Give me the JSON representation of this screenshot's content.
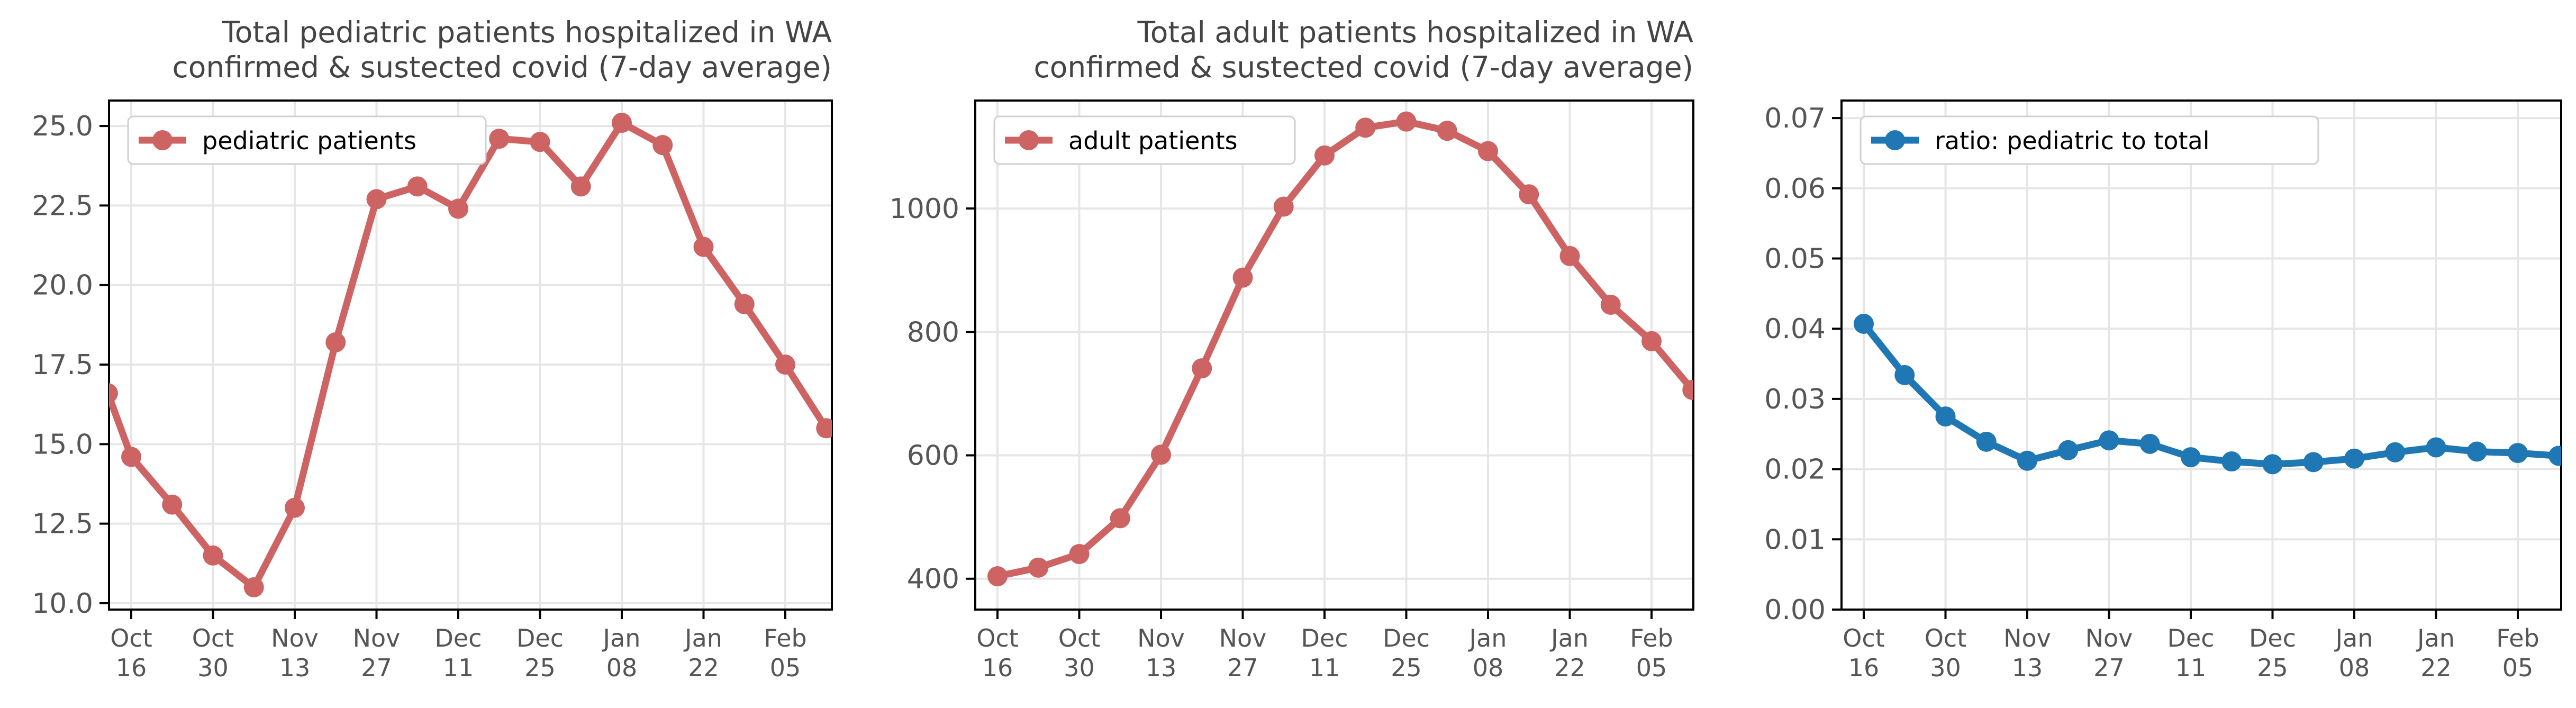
{
  "chart_data": [
    {
      "type": "line",
      "title": "Total pediatric patients hospitalized in WA\nconfirmed & sustected covid (7-day average)",
      "xlabel": "",
      "ylabel": "",
      "x_tick_labels": [
        "Oct\n16",
        "Oct\n30",
        "Nov\n13",
        "Nov\n27",
        "Dec\n11",
        "Dec\n25",
        "Jan\n08",
        "Jan\n22",
        "Feb\n05"
      ],
      "y_tick_labels": [
        "10.0",
        "12.5",
        "15.0",
        "17.5",
        "20.0",
        "22.5",
        "25.0"
      ],
      "ylim": [
        9.8,
        25.8
      ],
      "grid": true,
      "legend_position": "upper-left",
      "color": "#cd6363",
      "series": [
        {
          "name": "pediatric patients",
          "x": [
            "2022-10-12",
            "2022-10-16",
            "2022-10-23",
            "2022-10-30",
            "2022-11-06",
            "2022-11-13",
            "2022-11-20",
            "2022-11-27",
            "2022-12-04",
            "2022-12-11",
            "2022-12-18",
            "2022-12-25",
            "2023-01-01",
            "2023-01-08",
            "2023-01-15",
            "2023-01-22",
            "2023-01-29",
            "2023-02-05",
            "2023-02-12"
          ],
          "values": [
            16.6,
            14.6,
            13.1,
            11.5,
            10.5,
            13.0,
            18.2,
            22.7,
            23.1,
            22.4,
            24.6,
            24.5,
            23.1,
            25.1,
            24.4,
            21.2,
            19.4,
            17.5,
            15.5
          ]
        }
      ]
    },
    {
      "type": "line",
      "title": "Total adult patients hospitalized in WA\nconfirmed & sustected covid (7-day average)",
      "xlabel": "",
      "ylabel": "",
      "x_tick_labels": [
        "Oct\n16",
        "Oct\n30",
        "Nov\n13",
        "Nov\n27",
        "Dec\n11",
        "Dec\n25",
        "Jan\n08",
        "Jan\n22",
        "Feb\n05"
      ],
      "y_tick_labels": [
        "400",
        "600",
        "800",
        "1000"
      ],
      "ylim": [
        350,
        1175
      ],
      "grid": true,
      "legend_position": "upper-left",
      "color": "#cd6363",
      "series": [
        {
          "name": "adult patients",
          "x": [
            "2022-10-16",
            "2022-10-23",
            "2022-10-30",
            "2022-11-06",
            "2022-11-13",
            "2022-11-20",
            "2022-11-27",
            "2022-12-04",
            "2022-12-11",
            "2022-12-18",
            "2022-12-25",
            "2023-01-01",
            "2023-01-08",
            "2023-01-15",
            "2023-01-22",
            "2023-01-29",
            "2023-02-05",
            "2023-02-12"
          ],
          "values": [
            404,
            418,
            440,
            498,
            601,
            741,
            888,
            1003,
            1086,
            1131,
            1141,
            1126,
            1093,
            1023,
            923,
            844,
            785,
            706
          ]
        }
      ]
    },
    {
      "type": "line",
      "title": "",
      "xlabel": "",
      "ylabel": "",
      "x_tick_labels": [
        "Oct\n16",
        "Oct\n30",
        "Nov\n13",
        "Nov\n27",
        "Dec\n11",
        "Dec\n25",
        "Jan\n08",
        "Jan\n22",
        "Feb\n05"
      ],
      "y_tick_labels": [
        "0.00",
        "0.01",
        "0.02",
        "0.03",
        "0.04",
        "0.05",
        "0.06",
        "0.07"
      ],
      "ylim": [
        0,
        0.0725
      ],
      "grid": true,
      "legend_position": "upper-left",
      "color": "#1f77b4",
      "series": [
        {
          "name": "ratio: pediatric to total",
          "x": [
            "2022-10-16",
            "2022-10-23",
            "2022-10-30",
            "2022-11-06",
            "2022-11-13",
            "2022-11-20",
            "2022-11-27",
            "2022-12-04",
            "2022-12-11",
            "2022-12-18",
            "2022-12-25",
            "2023-01-01",
            "2023-01-08",
            "2023-01-15",
            "2023-01-22",
            "2023-01-29",
            "2023-02-05",
            "2023-02-12"
          ],
          "values": [
            0.0407,
            0.0334,
            0.0275,
            0.0239,
            0.0212,
            0.0227,
            0.0241,
            0.0236,
            0.0217,
            0.0211,
            0.0207,
            0.021,
            0.0215,
            0.0224,
            0.0231,
            0.0225,
            0.0223,
            0.0219
          ]
        }
      ]
    }
  ]
}
